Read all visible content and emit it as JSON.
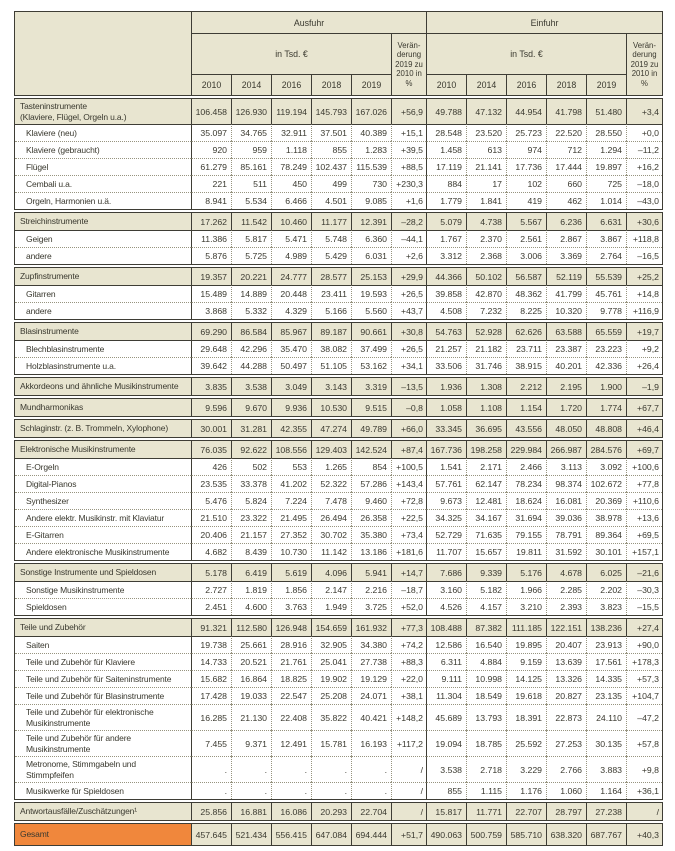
{
  "table": {
    "header": {
      "corner": "",
      "ausfuhr": "Ausfuhr",
      "einfuhr": "Einfuhr",
      "unit": "in Tsd. €",
      "change": "Verän-\nderung\n2019 zu\n2010 in %",
      "years": [
        "2010",
        "2014",
        "2016",
        "2018",
        "2019"
      ]
    },
    "groups": [
      {
        "rows": [
          {
            "type": "section",
            "label": "Tasteninstrumente\n(Klaviere, Flügel, Orgeln u.a.)",
            "ausfuhr": [
              "106.458",
              "126.930",
              "119.194",
              "145.793",
              "167.026",
              "+56,9"
            ],
            "einfuhr": [
              "49.788",
              "47.132",
              "44.954",
              "41.798",
              "51.480",
              "+3,4"
            ]
          },
          {
            "type": "sub",
            "label": "Klaviere (neu)",
            "ausfuhr": [
              "35.097",
              "34.765",
              "32.911",
              "37.501",
              "40.389",
              "+15,1"
            ],
            "einfuhr": [
              "28.548",
              "23.520",
              "25.723",
              "22.520",
              "28.550",
              "+0,0"
            ]
          },
          {
            "type": "sub",
            "label": "Klaviere (gebraucht)",
            "ausfuhr": [
              "920",
              "959",
              "1.118",
              "855",
              "1.283",
              "+39,5"
            ],
            "einfuhr": [
              "1.458",
              "613",
              "974",
              "712",
              "1.294",
              "–11,2"
            ]
          },
          {
            "type": "sub",
            "label": "Flügel",
            "ausfuhr": [
              "61.279",
              "85.161",
              "78.249",
              "102.437",
              "115.539",
              "+88,5"
            ],
            "einfuhr": [
              "17.119",
              "21.141",
              "17.736",
              "17.444",
              "19.897",
              "+16,2"
            ]
          },
          {
            "type": "sub",
            "label": "Cembali u.a.",
            "ausfuhr": [
              "221",
              "511",
              "450",
              "499",
              "730",
              "+230,3"
            ],
            "einfuhr": [
              "884",
              "17",
              "102",
              "660",
              "725",
              "–18,0"
            ]
          },
          {
            "type": "sub",
            "label": "Orgeln, Harmonien u.ä.",
            "ausfuhr": [
              "8.941",
              "5.534",
              "6.466",
              "4.501",
              "9.085",
              "+1,6"
            ],
            "einfuhr": [
              "1.779",
              "1.841",
              "419",
              "462",
              "1.014",
              "–43,0"
            ]
          }
        ]
      },
      {
        "rows": [
          {
            "type": "section",
            "label": "Streichinstrumente",
            "ausfuhr": [
              "17.262",
              "11.542",
              "10.460",
              "11.177",
              "12.391",
              "–28,2"
            ],
            "einfuhr": [
              "5.079",
              "4.738",
              "5.567",
              "6.236",
              "6.631",
              "+30,6"
            ]
          },
          {
            "type": "sub",
            "label": "Geigen",
            "ausfuhr": [
              "11.386",
              "5.817",
              "5.471",
              "5.748",
              "6.360",
              "–44,1"
            ],
            "einfuhr": [
              "1.767",
              "2.370",
              "2.561",
              "2.867",
              "3.867",
              "+118,8"
            ]
          },
          {
            "type": "sub",
            "label": "andere",
            "ausfuhr": [
              "5.876",
              "5.725",
              "4.989",
              "5.429",
              "6.031",
              "+2,6"
            ],
            "einfuhr": [
              "3.312",
              "2.368",
              "3.006",
              "3.369",
              "2.764",
              "–16,5"
            ]
          }
        ]
      },
      {
        "rows": [
          {
            "type": "section",
            "label": "Zupfinstrumente",
            "ausfuhr": [
              "19.357",
              "20.221",
              "24.777",
              "28.577",
              "25.153",
              "+29,9"
            ],
            "einfuhr": [
              "44.366",
              "50.102",
              "56.587",
              "52.119",
              "55.539",
              "+25,2"
            ]
          },
          {
            "type": "sub",
            "label": "Gitarren",
            "ausfuhr": [
              "15.489",
              "14.889",
              "20.448",
              "23.411",
              "19.593",
              "+26,5"
            ],
            "einfuhr": [
              "39.858",
              "42.870",
              "48.362",
              "41.799",
              "45.761",
              "+14,8"
            ]
          },
          {
            "type": "sub",
            "label": "andere",
            "ausfuhr": [
              "3.868",
              "5.332",
              "4.329",
              "5.166",
              "5.560",
              "+43,7"
            ],
            "einfuhr": [
              "4.508",
              "7.232",
              "8.225",
              "10.320",
              "9.778",
              "+116,9"
            ]
          }
        ]
      },
      {
        "rows": [
          {
            "type": "section",
            "label": "Blasinstrumente",
            "ausfuhr": [
              "69.290",
              "86.584",
              "85.967",
              "89.187",
              "90.661",
              "+30,8"
            ],
            "einfuhr": [
              "54.763",
              "52.928",
              "62.626",
              "63.588",
              "65.559",
              "+19,7"
            ]
          },
          {
            "type": "sub",
            "label": "Blechblasinstrumente",
            "ausfuhr": [
              "29.648",
              "42.296",
              "35.470",
              "38.082",
              "37.499",
              "+26,5"
            ],
            "einfuhr": [
              "21.257",
              "21.182",
              "23.711",
              "23.387",
              "23.223",
              "+9,2"
            ]
          },
          {
            "type": "sub",
            "label": "Holzblasinstrumente u.a.",
            "ausfuhr": [
              "39.642",
              "44.288",
              "50.497",
              "51.105",
              "53.162",
              "+34,1"
            ],
            "einfuhr": [
              "33.506",
              "31.746",
              "38.915",
              "40.201",
              "42.336",
              "+26,4"
            ]
          }
        ]
      },
      {
        "rows": [
          {
            "type": "section",
            "label": "Akkordeons und ähnliche Musikinstrumente",
            "ausfuhr": [
              "3.835",
              "3.538",
              "3.049",
              "3.143",
              "3.319",
              "–13,5"
            ],
            "einfuhr": [
              "1.936",
              "1.308",
              "2.212",
              "2.195",
              "1.900",
              "–1,9"
            ]
          }
        ]
      },
      {
        "rows": [
          {
            "type": "section",
            "label": "Mundharmonikas",
            "ausfuhr": [
              "9.596",
              "9.670",
              "9.936",
              "10.530",
              "9.515",
              "–0,8"
            ],
            "einfuhr": [
              "1.058",
              "1.108",
              "1.154",
              "1.720",
              "1.774",
              "+67,7"
            ]
          }
        ]
      },
      {
        "rows": [
          {
            "type": "section",
            "label": "Schlaginstr. (z. B. Trommeln, Xylophone)",
            "ausfuhr": [
              "30.001",
              "31.281",
              "42.355",
              "47.274",
              "49.789",
              "+66,0"
            ],
            "einfuhr": [
              "33.345",
              "36.695",
              "43.556",
              "48.050",
              "48.808",
              "+46,4"
            ]
          }
        ]
      },
      {
        "rows": [
          {
            "type": "section",
            "label": "Elektronische Musikinstrumente",
            "ausfuhr": [
              "76.035",
              "92.622",
              "108.556",
              "129.403",
              "142.524",
              "+87,4"
            ],
            "einfuhr": [
              "167.736",
              "198.258",
              "229.984",
              "266.987",
              "284.576",
              "+69,7"
            ]
          },
          {
            "type": "sub",
            "label": "E-Orgeln",
            "ausfuhr": [
              "426",
              "502",
              "553",
              "1.265",
              "854",
              "+100,5"
            ],
            "einfuhr": [
              "1.541",
              "2.171",
              "2.466",
              "3.113",
              "3.092",
              "+100,6"
            ]
          },
          {
            "type": "sub",
            "label": "Digital-Pianos",
            "ausfuhr": [
              "23.535",
              "33.378",
              "41.202",
              "52.322",
              "57.286",
              "+143,4"
            ],
            "einfuhr": [
              "57.761",
              "62.147",
              "78.234",
              "98.374",
              "102.672",
              "+77,8"
            ]
          },
          {
            "type": "sub",
            "label": "Synthesizer",
            "ausfuhr": [
              "5.476",
              "5.824",
              "7.224",
              "7.478",
              "9.460",
              "+72,8"
            ],
            "einfuhr": [
              "9.673",
              "12.481",
              "18.624",
              "16.081",
              "20.369",
              "+110,6"
            ]
          },
          {
            "type": "sub",
            "label": "Andere elektr. Musikinstr. mit Klaviatur",
            "ausfuhr": [
              "21.510",
              "23.322",
              "21.495",
              "26.494",
              "26.358",
              "+22,5"
            ],
            "einfuhr": [
              "34.325",
              "34.167",
              "31.694",
              "39.036",
              "38.978",
              "+13,6"
            ]
          },
          {
            "type": "sub",
            "label": "E-Gitarren",
            "ausfuhr": [
              "20.406",
              "21.157",
              "27.352",
              "30.702",
              "35.380",
              "+73,4"
            ],
            "einfuhr": [
              "52.729",
              "71.635",
              "79.155",
              "78.791",
              "89.364",
              "+69,5"
            ]
          },
          {
            "type": "sub",
            "label": "Andere elektronische Musikinstrumente",
            "ausfuhr": [
              "4.682",
              "8.439",
              "10.730",
              "11.142",
              "13.186",
              "+181,6"
            ],
            "einfuhr": [
              "11.707",
              "15.657",
              "19.811",
              "31.592",
              "30.101",
              "+157,1"
            ]
          }
        ]
      },
      {
        "rows": [
          {
            "type": "section",
            "label": "Sonstige Instrumente und Spieldosen",
            "ausfuhr": [
              "5.178",
              "6.419",
              "5.619",
              "4.096",
              "5.941",
              "+14,7"
            ],
            "einfuhr": [
              "7.686",
              "9.339",
              "5.176",
              "4.678",
              "6.025",
              "–21,6"
            ]
          },
          {
            "type": "sub",
            "label": "Sonstige Musikinstrumente",
            "ausfuhr": [
              "2.727",
              "1.819",
              "1.856",
              "2.147",
              "2.216",
              "–18,7"
            ],
            "einfuhr": [
              "3.160",
              "5.182",
              "1.966",
              "2.285",
              "2.202",
              "–30,3"
            ]
          },
          {
            "type": "sub",
            "label": "Spieldosen",
            "ausfuhr": [
              "2.451",
              "4.600",
              "3.763",
              "1.949",
              "3.725",
              "+52,0"
            ],
            "einfuhr": [
              "4.526",
              "4.157",
              "3.210",
              "2.393",
              "3.823",
              "–15,5"
            ]
          }
        ]
      },
      {
        "rows": [
          {
            "type": "section",
            "label": "Teile und Zubehör",
            "ausfuhr": [
              "91.321",
              "112.580",
              "126.948",
              "154.659",
              "161.932",
              "+77,3"
            ],
            "einfuhr": [
              "108.488",
              "87.382",
              "111.185",
              "122.151",
              "138.236",
              "+27,4"
            ]
          },
          {
            "type": "sub",
            "label": "Saiten",
            "ausfuhr": [
              "19.738",
              "25.661",
              "28.916",
              "32.905",
              "34.380",
              "+74,2"
            ],
            "einfuhr": [
              "12.586",
              "16.540",
              "19.895",
              "20.407",
              "23.913",
              "+90,0"
            ]
          },
          {
            "type": "sub",
            "label": "Teile und Zubehör für Klaviere",
            "ausfuhr": [
              "14.733",
              "20.521",
              "21.761",
              "25.041",
              "27.738",
              "+88,3"
            ],
            "einfuhr": [
              "6.311",
              "4.884",
              "9.159",
              "13.639",
              "17.561",
              "+178,3"
            ]
          },
          {
            "type": "sub",
            "label": "Teile und Zubehör für Saiteninstrumente",
            "ausfuhr": [
              "15.682",
              "16.864",
              "18.825",
              "19.902",
              "19.129",
              "+22,0"
            ],
            "einfuhr": [
              "9.111",
              "10.998",
              "14.125",
              "13.326",
              "14.335",
              "+57,3"
            ]
          },
          {
            "type": "sub",
            "label": "Teile und Zubehör für Blasinstrumente",
            "ausfuhr": [
              "17.428",
              "19.033",
              "22.547",
              "25.208",
              "24.071",
              "+38,1"
            ],
            "einfuhr": [
              "11.304",
              "18.549",
              "19.618",
              "20.827",
              "23.135",
              "+104,7"
            ]
          },
          {
            "type": "sub",
            "label": "Teile und Zubehör für elektronische\nMusikinstrumente",
            "ausfuhr": [
              "16.285",
              "21.130",
              "22.408",
              "35.822",
              "40.421",
              "+148,2"
            ],
            "einfuhr": [
              "45.689",
              "13.793",
              "18.391",
              "22.873",
              "24.110",
              "–47,2"
            ]
          },
          {
            "type": "sub",
            "label": "Teile und Zubehör für andere\nMusikinstrumente",
            "ausfuhr": [
              "7.455",
              "9.371",
              "12.491",
              "15.781",
              "16.193",
              "+117,2"
            ],
            "einfuhr": [
              "19.094",
              "18.785",
              "25.592",
              "27.253",
              "30.135",
              "+57,8"
            ]
          },
          {
            "type": "sub",
            "label": "Metronome, Stimmgabeln und\nStimmpfeifen",
            "ausfuhr": [
              ".",
              ".",
              ".",
              ".",
              ".",
              "/"
            ],
            "einfuhr": [
              "3.538",
              "2.718",
              "3.229",
              "2.766",
              "3.883",
              "+9,8"
            ]
          },
          {
            "type": "sub",
            "label": "Musikwerke für Spieldosen",
            "ausfuhr": [
              ".",
              ".",
              ".",
              ".",
              ".",
              "/"
            ],
            "einfuhr": [
              "855",
              "1.115",
              "1.176",
              "1.060",
              "1.164",
              "+36,1"
            ]
          }
        ]
      },
      {
        "rows": [
          {
            "type": "section",
            "label": "Antwortausfälle/Zuschätzungen¹",
            "ausfuhr": [
              "25.856",
              "16.881",
              "16.086",
              "20.293",
              "22.704",
              "/"
            ],
            "einfuhr": [
              "15.817",
              "11.771",
              "22.707",
              "28.797",
              "27.238",
              "/"
            ]
          }
        ]
      },
      {
        "rows": [
          {
            "type": "total",
            "label": "Gesamt",
            "ausfuhr": [
              "457.645",
              "521.434",
              "556.415",
              "647.084",
              "694.444",
              "+51,7"
            ],
            "einfuhr": [
              "490.063",
              "500.759",
              "585.710",
              "638.320",
              "687.767",
              "+40,3"
            ]
          }
        ]
      }
    ]
  },
  "colors": {
    "beige": "#e8e5d0",
    "orange": "#f0873c",
    "border": "#3e3d35",
    "dotted": "#97947f",
    "text": "#3a392f"
  }
}
